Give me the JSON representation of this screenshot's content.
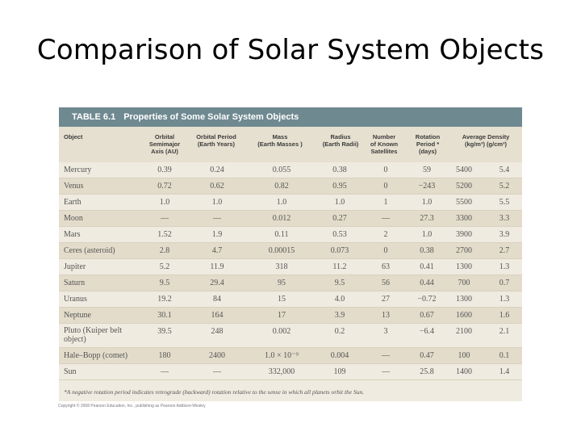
{
  "title": "Comparison of Solar System Objects",
  "table": {
    "number": "TABLE 6.1",
    "caption": "Properties of Some Solar System Objects",
    "headers": {
      "object": "Object",
      "axis": "Orbital\nSemimajor\nAxis (AU)",
      "period": "Orbital Period\n(Earth Years)",
      "mass": "Mass\n(Earth Masses )",
      "radius": "Radius\n(Earth Radii)",
      "satellites": "Number\nof Known\nSatellites",
      "rotation": "Rotation\nPeriod *\n(days)",
      "density": "Average Density\n(kg/m³)      (g/cm³)"
    },
    "rows": [
      {
        "object": "Mercury",
        "axis": "0.39",
        "period": "0.24",
        "mass": "0.055",
        "radius": "0.38",
        "satellites": "0",
        "rotation": "59",
        "kg": "5400",
        "g": "5.4"
      },
      {
        "object": "Venus",
        "axis": "0.72",
        "period": "0.62",
        "mass": "0.82",
        "radius": "0.95",
        "satellites": "0",
        "rotation": "−243",
        "kg": "5200",
        "g": "5.2"
      },
      {
        "object": "Earth",
        "axis": "1.0",
        "period": "1.0",
        "mass": "1.0",
        "radius": "1.0",
        "satellites": "1",
        "rotation": "1.0",
        "kg": "5500",
        "g": "5.5"
      },
      {
        "object": "Moon",
        "axis": "—",
        "period": "—",
        "mass": "0.012",
        "radius": "0.27",
        "satellites": "—",
        "rotation": "27.3",
        "kg": "3300",
        "g": "3.3"
      },
      {
        "object": "Mars",
        "axis": "1.52",
        "period": "1.9",
        "mass": "0.11",
        "radius": "0.53",
        "satellites": "2",
        "rotation": "1.0",
        "kg": "3900",
        "g": "3.9"
      },
      {
        "object": "Ceres (asteroid)",
        "axis": "2.8",
        "period": "4.7",
        "mass": "0.00015",
        "radius": "0.073",
        "satellites": "0",
        "rotation": "0.38",
        "kg": "2700",
        "g": "2.7"
      },
      {
        "object": "Jupiter",
        "axis": "5.2",
        "period": "11.9",
        "mass": "318",
        "radius": "11.2",
        "satellites": "63",
        "rotation": "0.41",
        "kg": "1300",
        "g": "1.3"
      },
      {
        "object": "Saturn",
        "axis": "9.5",
        "period": "29.4",
        "mass": "95",
        "radius": "9.5",
        "satellites": "56",
        "rotation": "0.44",
        "kg": "700",
        "g": "0.7"
      },
      {
        "object": "Uranus",
        "axis": "19.2",
        "period": "84",
        "mass": "15",
        "radius": "4.0",
        "satellites": "27",
        "rotation": "−0.72",
        "kg": "1300",
        "g": "1.3"
      },
      {
        "object": "Neptune",
        "axis": "30.1",
        "period": "164",
        "mass": "17",
        "radius": "3.9",
        "satellites": "13",
        "rotation": "0.67",
        "kg": "1600",
        "g": "1.6"
      },
      {
        "object": "Pluto (Kuiper belt\nobject)",
        "axis": "39.5",
        "period": "248",
        "mass": "0.002",
        "radius": "0.2",
        "satellites": "3",
        "rotation": "−6.4",
        "kg": "2100",
        "g": "2.1"
      },
      {
        "object": "Hale–Bopp (comet)",
        "axis": "180",
        "period": "2400",
        "mass": "1.0 × 10⁻⁹",
        "radius": "0.004",
        "satellites": "—",
        "rotation": "0.47",
        "kg": "100",
        "g": "0.1"
      },
      {
        "object": "Sun",
        "axis": "—",
        "period": "—",
        "mass": "332,000",
        "radius": "109",
        "satellites": "—",
        "rotation": "25.8",
        "kg": "1400",
        "g": "1.4"
      }
    ],
    "footnote": "*A negative rotation period indicates retrograde (backward) rotation relative to the sense in which all planets orbit the Sun.",
    "copyright": "Copyright © 2008 Pearson Education, Inc., publishing as Pearson Addison-Wesley"
  }
}
